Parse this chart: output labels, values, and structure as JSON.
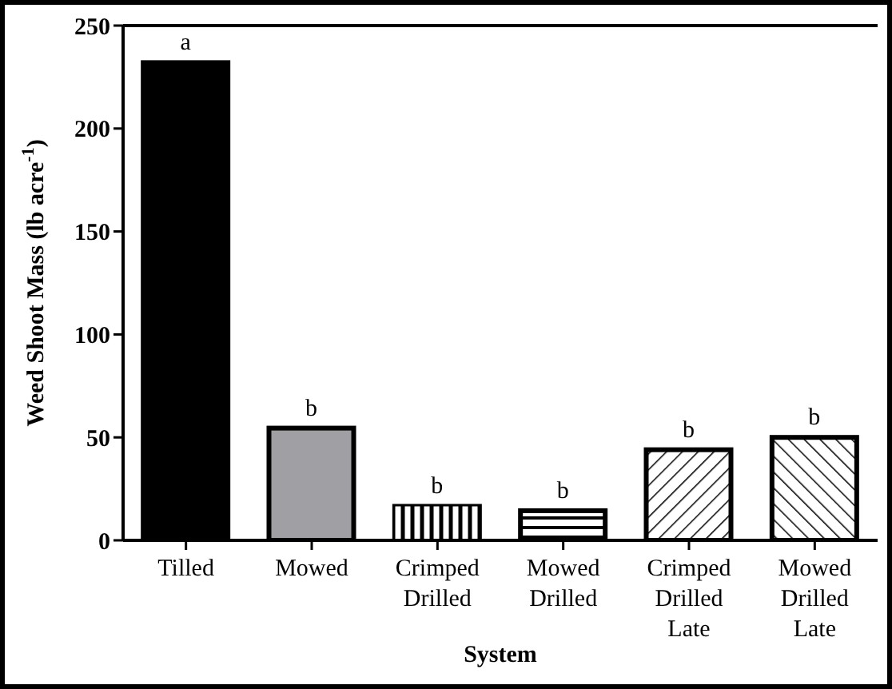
{
  "chart_data": {
    "type": "bar",
    "xlabel": "System",
    "ylabel": "Weed Shoot Mass (lb acre$^{-1}$)",
    "categories": [
      "Tilled",
      "Mowed",
      "Crimped Drilled",
      "Mowed Drilled",
      "Crimped Drilled Late",
      "Mowed Drilled Late"
    ],
    "values": [
      232,
      54.5,
      16.5,
      14.4,
      44,
      50
    ],
    "colors": [
      "#000000",
      "#a0a0a4",
      "#ffffff",
      "#ffffff",
      "#ffffff",
      "#ffffff"
    ],
    "ylim": [
      0,
      250
    ],
    "yticks": [
      0,
      50,
      100,
      150,
      200,
      250
    ],
    "grid": false,
    "legend": false,
    "annotations": [
      {
        "text": "a",
        "x": "Tilled",
        "y": 232
      },
      {
        "text": "b",
        "x": "Mowed",
        "y": 54.5
      },
      {
        "text": "b",
        "x": "Crimped Drilled",
        "y": 16.5
      },
      {
        "text": "b",
        "x": "Mowed Drilled",
        "y": 14.4
      },
      {
        "text": "b",
        "x": "Crimped Drilled Late",
        "y": 44
      },
      {
        "text": "b",
        "x": "Mowed Drilled Late",
        "y": 50
      }
    ]
  }
}
